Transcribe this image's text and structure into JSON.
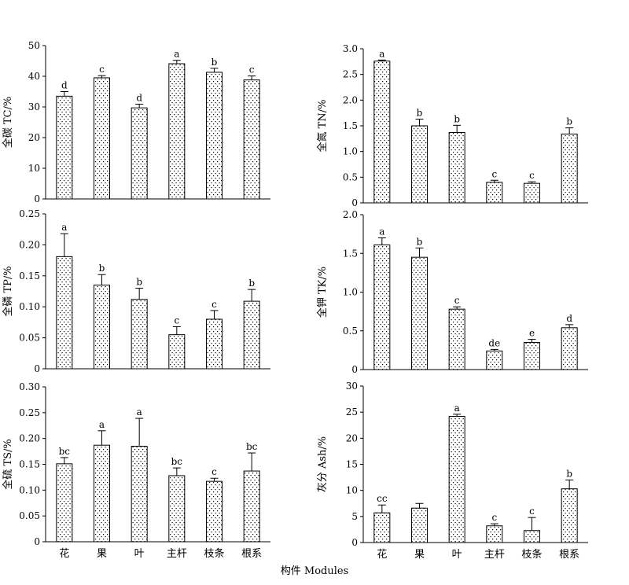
{
  "xlabel": "构件 Modules",
  "colors": {
    "bar_fill": "#ffffff",
    "bar_stroke": "#000000",
    "dot": "#000000"
  },
  "chart_data": [
    {
      "type": "bar",
      "ylabel": "全碳 TC/%",
      "categories": [
        "花",
        "果",
        "叶",
        "主杆",
        "枝条",
        "根系"
      ],
      "values": [
        33.5,
        39.5,
        29.7,
        44.1,
        41.3,
        38.8
      ],
      "errors": [
        1.5,
        0.7,
        1.2,
        1.1,
        1.3,
        1.3
      ],
      "letters": [
        "d",
        "c",
        "d",
        "a",
        "b",
        "c"
      ],
      "ylim": [
        0,
        50
      ],
      "yticks": [
        "0",
        "10",
        "20",
        "30",
        "40",
        "50"
      ],
      "show_categories": false
    },
    {
      "type": "bar",
      "ylabel": "全氮 TN/%",
      "categories": [
        "花",
        "果",
        "叶",
        "主杆",
        "枝条",
        "根系"
      ],
      "values": [
        2.76,
        1.5,
        1.37,
        0.4,
        0.38,
        1.34
      ],
      "errors": [
        0.02,
        0.13,
        0.14,
        0.04,
        0.03,
        0.12
      ],
      "letters": [
        "a",
        "b",
        "b",
        "c",
        "c",
        "b"
      ],
      "ylim": [
        0,
        3.0
      ],
      "yticks": [
        "0",
        "0.5",
        "1.0",
        "1.5",
        "2.0",
        "2.5",
        "3.0"
      ],
      "show_categories": false
    },
    {
      "type": "bar",
      "ylabel": "全磷 TP/%",
      "categories": [
        "花",
        "果",
        "叶",
        "主杆",
        "枝条",
        "根系"
      ],
      "values": [
        0.181,
        0.135,
        0.112,
        0.055,
        0.08,
        0.109
      ],
      "errors": [
        0.037,
        0.017,
        0.018,
        0.013,
        0.014,
        0.019
      ],
      "letters": [
        "a",
        "b",
        "b",
        "c",
        "c",
        "b"
      ],
      "ylim": [
        0,
        0.25
      ],
      "yticks": [
        "0",
        "0.05",
        "0.10",
        "0.15",
        "0.20",
        "0.25"
      ],
      "show_categories": false
    },
    {
      "type": "bar",
      "ylabel": "全钾 TK/%",
      "categories": [
        "花",
        "果",
        "叶",
        "主杆",
        "枝条",
        "根系"
      ],
      "values": [
        1.61,
        1.45,
        0.78,
        0.24,
        0.35,
        0.54
      ],
      "errors": [
        0.09,
        0.12,
        0.03,
        0.02,
        0.04,
        0.04
      ],
      "letters": [
        "a",
        "b",
        "c",
        "de",
        "e",
        "d"
      ],
      "ylim": [
        0,
        2.0
      ],
      "yticks": [
        "0",
        "0.5",
        "1.0",
        "1.5",
        "2.0"
      ],
      "show_categories": false
    },
    {
      "type": "bar",
      "ylabel": "全硫 TS/%",
      "categories": [
        "花",
        "果",
        "叶",
        "主杆",
        "枝条",
        "根系"
      ],
      "values": [
        0.151,
        0.187,
        0.185,
        0.128,
        0.117,
        0.137
      ],
      "errors": [
        0.012,
        0.028,
        0.054,
        0.015,
        0.006,
        0.035
      ],
      "letters": [
        "bc",
        "a",
        "a",
        "bc",
        "c",
        "bc"
      ],
      "ylim": [
        0,
        0.3
      ],
      "yticks": [
        "0",
        "0.05",
        "0.10",
        "0.15",
        "0.20",
        "0.25",
        "0.30"
      ],
      "show_categories": true
    },
    {
      "type": "bar",
      "ylabel": "灰分 Ash/%",
      "categories": [
        "花",
        "果",
        "叶",
        "主杆",
        "枝条",
        "根系"
      ],
      "values": [
        5.7,
        6.6,
        24.2,
        3.2,
        2.3,
        10.3
      ],
      "errors": [
        1.5,
        0.9,
        0.4,
        0.4,
        2.5,
        1.7
      ],
      "letters": [
        "cc",
        "",
        "a",
        "c",
        "c",
        "b"
      ],
      "ylim": [
        0,
        30
      ],
      "yticks": [
        "0",
        "5",
        "10",
        "15",
        "20",
        "25",
        "30"
      ],
      "show_categories": true
    }
  ]
}
